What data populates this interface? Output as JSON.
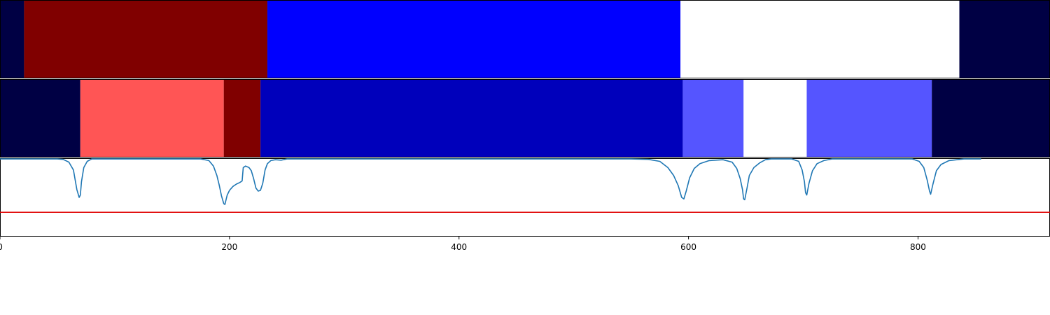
{
  "chart_data": {
    "type": "heatmap",
    "title": "",
    "xlabel": "",
    "ylabel": "",
    "xlim": [
      0,
      915
    ],
    "grid": false,
    "legend": "none",
    "x_ticks": [
      {
        "value": 0,
        "label": "0"
      },
      {
        "value": 200,
        "label": "200"
      },
      {
        "value": 400,
        "label": "400"
      },
      {
        "value": 600,
        "label": "600"
      },
      {
        "value": 800,
        "label": "800"
      }
    ],
    "tracks": [
      {
        "segments": [
          {
            "start": 0,
            "end": 21,
            "color": "#000044"
          },
          {
            "start": 21,
            "end": 233,
            "color": "#800000"
          },
          {
            "start": 233,
            "end": 593,
            "color": "#0000ff"
          },
          {
            "start": 593,
            "end": 836,
            "color": "#ffffff"
          },
          {
            "start": 836,
            "end": 915,
            "color": "#000044"
          }
        ]
      },
      {
        "segments": [
          {
            "start": 0,
            "end": 70,
            "color": "#000044"
          },
          {
            "start": 70,
            "end": 195,
            "color": "#ff5555"
          },
          {
            "start": 195,
            "end": 227,
            "color": "#800000"
          },
          {
            "start": 227,
            "end": 595,
            "color": "#0000bb"
          },
          {
            "start": 595,
            "end": 648,
            "color": "#5555ff"
          },
          {
            "start": 648,
            "end": 703,
            "color": "#ffffff"
          },
          {
            "start": 703,
            "end": 812,
            "color": "#5555ff"
          },
          {
            "start": 812,
            "end": 915,
            "color": "#000044"
          }
        ]
      }
    ],
    "signal": {
      "color": "#1f77b4",
      "ylim": [
        0,
        1
      ],
      "threshold": 0.31,
      "threshold_color": "#e00000",
      "points": [
        [
          0,
          0.99
        ],
        [
          50,
          0.99
        ],
        [
          55,
          0.985
        ],
        [
          60,
          0.95
        ],
        [
          64,
          0.85
        ],
        [
          67,
          0.6
        ],
        [
          69,
          0.5
        ],
        [
          70,
          0.53
        ],
        [
          71,
          0.7
        ],
        [
          73,
          0.88
        ],
        [
          76,
          0.96
        ],
        [
          80,
          0.99
        ],
        [
          150,
          0.99
        ],
        [
          175,
          0.99
        ],
        [
          182,
          0.97
        ],
        [
          186,
          0.9
        ],
        [
          189,
          0.78
        ],
        [
          191,
          0.66
        ],
        [
          193,
          0.52
        ],
        [
          195,
          0.42
        ],
        [
          196,
          0.41
        ],
        [
          198,
          0.53
        ],
        [
          200,
          0.59
        ],
        [
          203,
          0.64
        ],
        [
          206,
          0.67
        ],
        [
          209,
          0.69
        ],
        [
          211,
          0.71
        ],
        [
          212,
          0.88
        ],
        [
          214,
          0.9
        ],
        [
          217,
          0.88
        ],
        [
          219,
          0.84
        ],
        [
          221,
          0.74
        ],
        [
          223,
          0.62
        ],
        [
          225,
          0.58
        ],
        [
          227,
          0.59
        ],
        [
          229,
          0.68
        ],
        [
          231,
          0.85
        ],
        [
          233,
          0.93
        ],
        [
          236,
          0.97
        ],
        [
          240,
          0.98
        ],
        [
          245,
          0.975
        ],
        [
          250,
          0.99
        ],
        [
          270,
          0.99
        ],
        [
          550,
          0.99
        ],
        [
          565,
          0.985
        ],
        [
          575,
          0.96
        ],
        [
          582,
          0.88
        ],
        [
          587,
          0.78
        ],
        [
          591,
          0.65
        ],
        [
          594,
          0.5
        ],
        [
          596,
          0.48
        ],
        [
          598,
          0.58
        ],
        [
          601,
          0.75
        ],
        [
          605,
          0.87
        ],
        [
          610,
          0.93
        ],
        [
          618,
          0.97
        ],
        [
          630,
          0.98
        ],
        [
          638,
          0.95
        ],
        [
          642,
          0.87
        ],
        [
          645,
          0.74
        ],
        [
          647,
          0.6
        ],
        [
          648,
          0.48
        ],
        [
          649,
          0.47
        ],
        [
          651,
          0.62
        ],
        [
          653,
          0.78
        ],
        [
          657,
          0.88
        ],
        [
          662,
          0.94
        ],
        [
          667,
          0.98
        ],
        [
          672,
          0.99
        ],
        [
          690,
          0.99
        ],
        [
          696,
          0.96
        ],
        [
          699,
          0.85
        ],
        [
          701,
          0.7
        ],
        [
          702,
          0.56
        ],
        [
          703,
          0.53
        ],
        [
          705,
          0.68
        ],
        [
          708,
          0.84
        ],
        [
          712,
          0.93
        ],
        [
          718,
          0.97
        ],
        [
          725,
          0.99
        ],
        [
          795,
          0.99
        ],
        [
          801,
          0.96
        ],
        [
          805,
          0.88
        ],
        [
          808,
          0.72
        ],
        [
          810,
          0.58
        ],
        [
          811,
          0.54
        ],
        [
          813,
          0.67
        ],
        [
          816,
          0.84
        ],
        [
          820,
          0.92
        ],
        [
          827,
          0.97
        ],
        [
          840,
          0.99
        ],
        [
          855,
          0.99
        ]
      ]
    }
  }
}
